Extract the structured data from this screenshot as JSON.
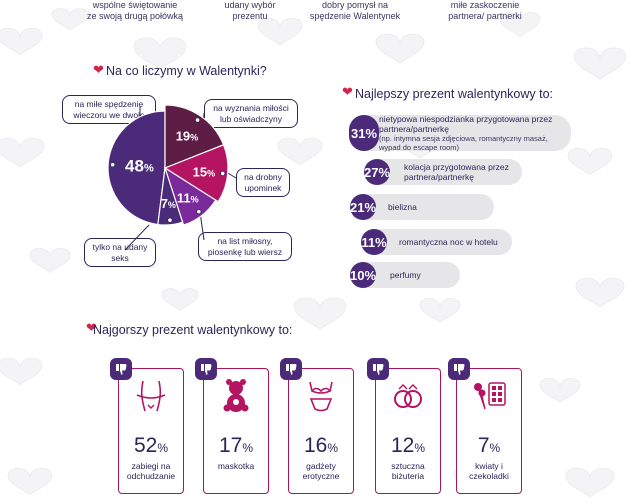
{
  "top_captions": [
    {
      "line1": "wspólne świętowanie",
      "line2": "ze swoją drugą połówką"
    },
    {
      "line1": "udany wybór",
      "line2": "prezentu"
    },
    {
      "line1": "dobry pomysł na",
      "line2": "spędzenie Walentynek"
    },
    {
      "line1": "miłe zaskoczenie",
      "line2": "partnera/ partnerki"
    }
  ],
  "colors": {
    "dark_purple": "#4b2a7a",
    "plum": "#5e1d45",
    "magenta": "#b51462",
    "violet": "#7a2a9a",
    "accent_red": "#d3234c",
    "card_border": "#a9155a"
  },
  "chart_data": [
    {
      "type": "pie",
      "title": "Na co liczymy w Walentynki?",
      "slices": [
        {
          "label": "na miłe spędzenie wieczoru we dwoje",
          "value": 48,
          "value_label": "48%"
        },
        {
          "label": "na wyznania miłości lub oświadczyny",
          "value": 19,
          "value_label": "19%"
        },
        {
          "label": "na drobny upominek",
          "value": 15,
          "value_label": "15%"
        },
        {
          "label": "na list miłosny, piosenkę lub wiersz",
          "value": 11,
          "value_label": "11%"
        },
        {
          "label": "tylko na udany seks",
          "value": 7,
          "value_label": "7%"
        }
      ]
    },
    {
      "type": "bar",
      "title": "Najlepszy prezent walentynkowy to:",
      "categories": [
        "nietypowa niespodzianka przygotowana przez partnera/partnerkę",
        "kolacja przygotowana przez partnera/partnerkę",
        "bielizna",
        "romantyczna noc w hotelu",
        "perfumy"
      ],
      "notes": [
        "(np. intymna sesja zdjęciowa, romantyczny masaż, wypad do escape room)",
        "",
        "",
        "",
        ""
      ],
      "values": [
        31,
        27,
        21,
        11,
        10
      ],
      "value_labels": [
        "31%",
        "27%",
        "21%",
        "11%",
        "10%"
      ]
    },
    {
      "type": "bar",
      "title": "Najgorszy prezent walentynkowy to:",
      "categories": [
        "zabiegi na odchudzanie",
        "maskotka",
        "gadżety erotyczne",
        "sztuczna biżuteria",
        "kwiaty i czekoladki"
      ],
      "values": [
        52,
        17,
        16,
        12,
        7
      ],
      "value_labels": [
        "52%",
        "17%",
        "16%",
        "12%",
        "7%"
      ],
      "icons": [
        "waist-measure-icon",
        "teddy-bear-icon",
        "lingerie-icon",
        "rings-icon",
        "flowers-chocolate-icon"
      ]
    }
  ]
}
